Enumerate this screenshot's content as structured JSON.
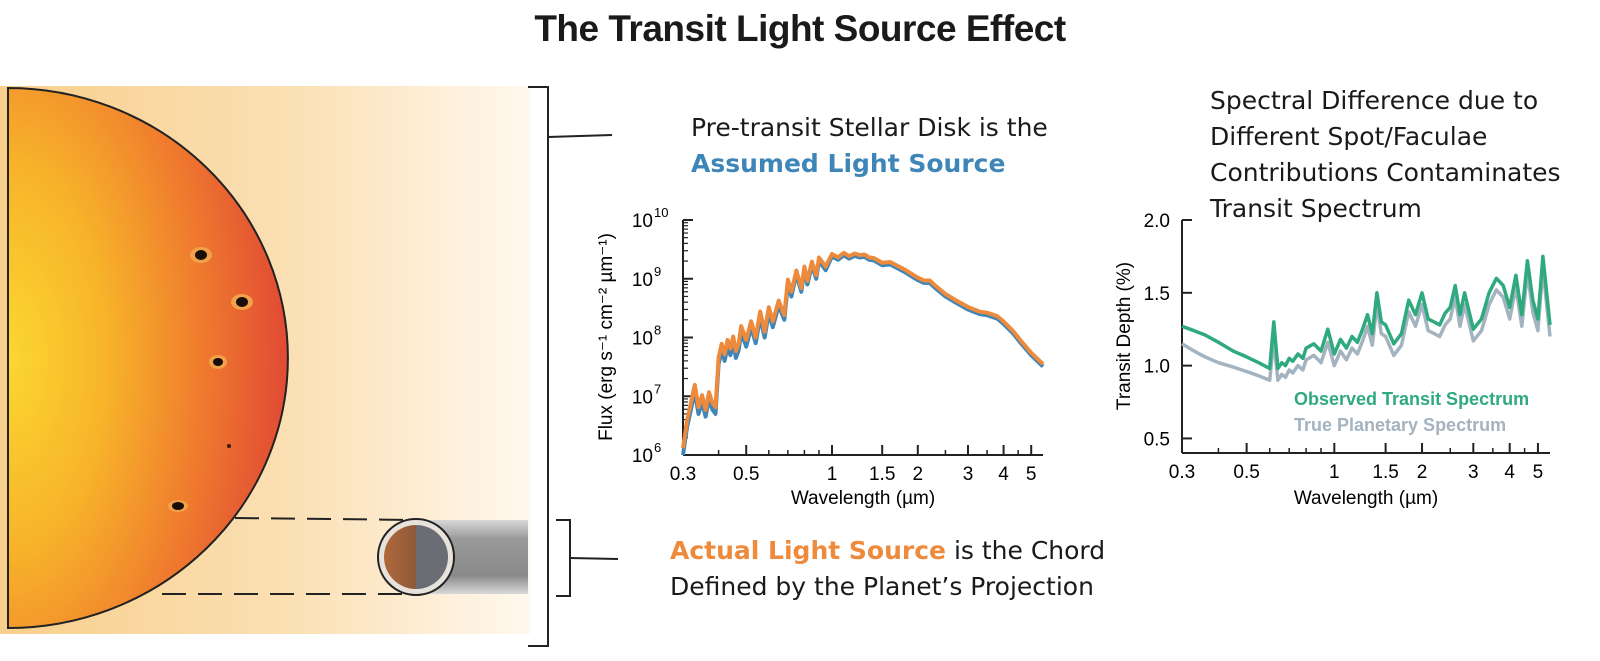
{
  "title": "The Transit Light Source Effect",
  "annotations": {
    "pre_transit_line1": "Pre-transit Stellar Disk is the",
    "pre_transit_line2": "Assumed Light Source",
    "actual_source_highlight": "Actual Light Source",
    "actual_source_rest": " is the Chord",
    "actual_source_line2": "Defined by the Planet’s Projection",
    "difference_lines": [
      "Spectral Difference due to",
      "Different Spot/Faculae",
      "Contributions Contaminates",
      "Transit Spectrum"
    ]
  },
  "colors": {
    "assumed": "#3f86b8",
    "actual": "#ee8a3c",
    "observed": "#2faa7e",
    "true_spectrum": "#a3b3c0"
  },
  "chart_data": [
    {
      "type": "line",
      "name": "stellar-flux",
      "xscale": "log",
      "yscale": "log",
      "xlabel": "Wavelength (µm)",
      "ylabel": "Flux (erg s⁻¹ cm⁻² µm⁻¹)",
      "xlim": [
        0.3,
        5.5
      ],
      "ylim": [
        1000000,
        10000000000
      ],
      "xticks": [
        0.3,
        0.5,
        1,
        1.5,
        2,
        3,
        4,
        5
      ],
      "xtick_labels": [
        "0.3",
        "0.5",
        "1",
        "1.5",
        "2",
        "3",
        "4",
        "5"
      ],
      "yticks": [
        1000000,
        10000000,
        100000000,
        1000000000,
        10000000000
      ],
      "ytick_exponents": [
        "6",
        "7",
        "8",
        "9",
        "10"
      ],
      "ytick_base": "10",
      "series": [
        {
          "name": "Assumed Light Source (pre-transit disk)",
          "color": "#3f86b8",
          "x": [
            0.3,
            0.31,
            0.32,
            0.33,
            0.34,
            0.35,
            0.36,
            0.37,
            0.38,
            0.39,
            0.4,
            0.41,
            0.42,
            0.43,
            0.44,
            0.45,
            0.46,
            0.47,
            0.48,
            0.5,
            0.52,
            0.54,
            0.56,
            0.58,
            0.6,
            0.62,
            0.65,
            0.68,
            0.7,
            0.72,
            0.75,
            0.78,
            0.8,
            0.82,
            0.85,
            0.88,
            0.9,
            0.95,
            1.0,
            1.05,
            1.1,
            1.15,
            1.2,
            1.25,
            1.3,
            1.35,
            1.4,
            1.5,
            1.6,
            1.7,
            1.8,
            1.9,
            2.0,
            2.1,
            2.2,
            2.3,
            2.5,
            2.7,
            3.0,
            3.3,
            3.5,
            3.8,
            4.0,
            4.3,
            4.6,
            5.0,
            5.5
          ],
          "y": [
            1000000,
            3000000,
            6000000,
            12000000,
            5000000,
            8000000,
            4500000,
            9000000,
            6000000,
            5000000,
            35000000,
            60000000,
            40000000,
            70000000,
            50000000,
            80000000,
            45000000,
            60000000,
            120000000,
            70000000,
            150000000,
            80000000,
            220000000,
            100000000,
            260000000,
            150000000,
            350000000,
            200000000,
            800000000,
            500000000,
            1200000000,
            600000000,
            1400000000,
            800000000,
            1700000000,
            1000000000,
            2000000000,
            1400000000,
            2400000000,
            2100000000,
            2500000000,
            2200000000,
            2450000000,
            2300000000,
            2350000000,
            2100000000,
            2050000000,
            1700000000,
            1750000000,
            1500000000,
            1300000000,
            1100000000,
            950000000,
            850000000,
            850000000,
            700000000,
            500000000,
            400000000,
            300000000,
            250000000,
            240000000,
            210000000,
            170000000,
            120000000,
            80000000,
            50000000,
            32000000
          ]
        },
        {
          "name": "Actual Light Source (chord)",
          "color": "#ee8a3c",
          "x": [
            0.3,
            0.31,
            0.32,
            0.33,
            0.34,
            0.35,
            0.36,
            0.37,
            0.38,
            0.39,
            0.4,
            0.41,
            0.42,
            0.43,
            0.44,
            0.45,
            0.46,
            0.47,
            0.48,
            0.5,
            0.52,
            0.54,
            0.56,
            0.58,
            0.6,
            0.62,
            0.65,
            0.68,
            0.7,
            0.72,
            0.75,
            0.78,
            0.8,
            0.82,
            0.85,
            0.88,
            0.9,
            0.95,
            1.0,
            1.05,
            1.1,
            1.15,
            1.2,
            1.25,
            1.3,
            1.35,
            1.4,
            1.5,
            1.6,
            1.7,
            1.8,
            1.9,
            2.0,
            2.1,
            2.2,
            2.3,
            2.5,
            2.7,
            3.0,
            3.3,
            3.5,
            3.8,
            4.0,
            4.3,
            4.6,
            5.0,
            5.5
          ],
          "y": [
            1300000,
            3900000,
            7800000,
            15600000,
            6500000,
            10400000,
            5850000,
            11700000,
            7800000,
            6500000,
            45500000,
            78000000,
            52000000,
            91000000,
            65000000,
            104000000,
            58500000,
            78000000,
            156000000,
            91000000,
            189000000,
            100800000,
            277200000,
            126000000,
            327600000,
            189000000,
            423500000,
            242000000,
            968000000,
            605000000,
            1380000000,
            690000000,
            1610000000,
            920000000,
            1955000000,
            1150000000,
            2300000000,
            1610000000,
            2640000000,
            2310000000,
            2750000000,
            2420000000,
            2695000000,
            2530000000,
            2585000000,
            2310000000,
            2255000000,
            1870000000,
            1925000000,
            1650000000,
            1430000000,
            1210000000,
            1045000000,
            935000000,
            935000000,
            770000000,
            550000000,
            440000000,
            330000000,
            275000000,
            264000000,
            231000000,
            187000000,
            132000000,
            88000000,
            55000000,
            35200000
          ]
        }
      ]
    },
    {
      "type": "line",
      "name": "transit-depth",
      "xscale": "log",
      "xlabel": "Wavelength (µm)",
      "ylabel": "Transit Depth (%)",
      "xlim": [
        0.3,
        5.5
      ],
      "ylim": [
        0.4,
        2.0
      ],
      "xticks": [
        0.3,
        0.5,
        1,
        1.5,
        2,
        3,
        4,
        5
      ],
      "xtick_labels": [
        "0.3",
        "0.5",
        "1",
        "1.5",
        "2",
        "3",
        "4",
        "5"
      ],
      "yticks": [
        0.5,
        1.0,
        1.5,
        2.0
      ],
      "ytick_labels": [
        "0.5",
        "1.0",
        "1.5",
        "2.0"
      ],
      "series": [
        {
          "name": "Observed Transit Spectrum",
          "color": "#2faa7e",
          "x": [
            0.3,
            0.33,
            0.36,
            0.4,
            0.45,
            0.5,
            0.55,
            0.6,
            0.62,
            0.64,
            0.66,
            0.68,
            0.7,
            0.72,
            0.75,
            0.78,
            0.8,
            0.85,
            0.9,
            0.95,
            1.0,
            1.05,
            1.1,
            1.15,
            1.2,
            1.25,
            1.3,
            1.35,
            1.4,
            1.45,
            1.5,
            1.6,
            1.7,
            1.8,
            1.9,
            2.0,
            2.1,
            2.2,
            2.3,
            2.4,
            2.5,
            2.6,
            2.7,
            2.8,
            3.0,
            3.2,
            3.4,
            3.6,
            3.8,
            4.0,
            4.2,
            4.4,
            4.6,
            4.8,
            5.0,
            5.2,
            5.5
          ],
          "y": [
            1.27,
            1.24,
            1.21,
            1.16,
            1.1,
            1.06,
            1.02,
            0.98,
            1.3,
            0.98,
            1.02,
            1.0,
            1.05,
            1.03,
            1.08,
            1.05,
            1.12,
            1.15,
            1.1,
            1.25,
            1.08,
            1.18,
            1.12,
            1.2,
            1.16,
            1.25,
            1.35,
            1.22,
            1.5,
            1.3,
            1.28,
            1.15,
            1.22,
            1.45,
            1.35,
            1.5,
            1.32,
            1.3,
            1.28,
            1.36,
            1.4,
            1.55,
            1.35,
            1.5,
            1.25,
            1.32,
            1.5,
            1.6,
            1.55,
            1.4,
            1.62,
            1.35,
            1.72,
            1.45,
            1.32,
            1.75,
            1.28
          ]
        },
        {
          "name": "True Planetary Spectrum",
          "color": "#a3b3c0",
          "x": [
            0.3,
            0.33,
            0.36,
            0.4,
            0.45,
            0.5,
            0.55,
            0.6,
            0.62,
            0.64,
            0.66,
            0.68,
            0.7,
            0.72,
            0.75,
            0.78,
            0.8,
            0.85,
            0.9,
            0.95,
            1.0,
            1.05,
            1.1,
            1.15,
            1.2,
            1.25,
            1.3,
            1.35,
            1.4,
            1.45,
            1.5,
            1.6,
            1.7,
            1.8,
            1.9,
            2.0,
            2.1,
            2.2,
            2.3,
            2.4,
            2.5,
            2.6,
            2.7,
            2.8,
            3.0,
            3.2,
            3.4,
            3.6,
            3.8,
            4.0,
            4.2,
            4.4,
            4.6,
            4.8,
            5.0,
            5.2,
            5.5
          ],
          "y": [
            1.15,
            1.1,
            1.06,
            1.02,
            0.99,
            0.96,
            0.93,
            0.9,
            1.17,
            0.9,
            0.94,
            0.92,
            0.97,
            0.95,
            1.0,
            0.97,
            1.04,
            1.07,
            1.02,
            1.16,
            1.0,
            1.1,
            1.04,
            1.12,
            1.08,
            1.17,
            1.27,
            1.14,
            1.42,
            1.22,
            1.2,
            1.07,
            1.14,
            1.37,
            1.27,
            1.42,
            1.24,
            1.22,
            1.2,
            1.28,
            1.32,
            1.47,
            1.27,
            1.42,
            1.17,
            1.24,
            1.42,
            1.52,
            1.47,
            1.32,
            1.54,
            1.27,
            1.64,
            1.37,
            1.24,
            1.67,
            1.2
          ]
        }
      ]
    }
  ]
}
